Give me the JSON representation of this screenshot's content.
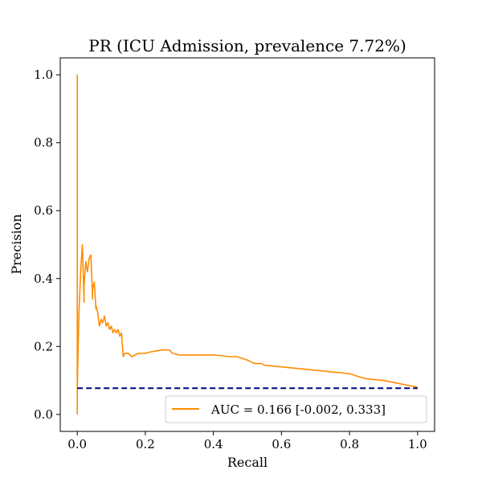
{
  "chart_data": {
    "type": "line",
    "title": "PR (ICU Admission, prevalence 7.72%)",
    "xlabel": "Recall",
    "ylabel": "Precision",
    "xlim": [
      -0.05,
      1.05
    ],
    "ylim": [
      -0.05,
      1.05
    ],
    "xticks": [
      "0.0",
      "0.2",
      "0.4",
      "0.6",
      "0.8",
      "1.0"
    ],
    "yticks": [
      "0.0",
      "0.2",
      "0.4",
      "0.6",
      "0.8",
      "1.0"
    ],
    "grid": false,
    "legend_position": "lower-right",
    "series": [
      {
        "name": "AUC = 0.166 [-0.002, 0.333]",
        "color": "#ff8c00",
        "style": "solid",
        "x": [
          0.0,
          0.0,
          0.0,
          0.005,
          0.01,
          0.015,
          0.02,
          0.02,
          0.025,
          0.03,
          0.035,
          0.04,
          0.045,
          0.045,
          0.05,
          0.055,
          0.055,
          0.06,
          0.065,
          0.07,
          0.075,
          0.08,
          0.085,
          0.09,
          0.095,
          0.1,
          0.105,
          0.11,
          0.115,
          0.12,
          0.125,
          0.13,
          0.135,
          0.14,
          0.15,
          0.16,
          0.18,
          0.2,
          0.22,
          0.25,
          0.27,
          0.28,
          0.3,
          0.35,
          0.4,
          0.45,
          0.47,
          0.5,
          0.52,
          0.54,
          0.55,
          0.6,
          0.65,
          0.7,
          0.75,
          0.8,
          0.83,
          0.85,
          0.9,
          0.95,
          1.0
        ],
        "y": [
          0.0,
          1.0,
          0.08,
          0.3,
          0.42,
          0.5,
          0.33,
          0.38,
          0.45,
          0.42,
          0.46,
          0.47,
          0.34,
          0.37,
          0.39,
          0.31,
          0.32,
          0.3,
          0.26,
          0.28,
          0.27,
          0.29,
          0.26,
          0.27,
          0.25,
          0.26,
          0.24,
          0.25,
          0.24,
          0.25,
          0.23,
          0.24,
          0.17,
          0.18,
          0.18,
          0.17,
          0.18,
          0.18,
          0.185,
          0.19,
          0.19,
          0.18,
          0.175,
          0.175,
          0.175,
          0.17,
          0.17,
          0.16,
          0.15,
          0.15,
          0.145,
          0.14,
          0.135,
          0.13,
          0.125,
          0.12,
          0.11,
          0.105,
          0.1,
          0.09,
          0.08
        ]
      },
      {
        "name": "",
        "color": "#000080",
        "style": "dashed",
        "x": [
          0.0,
          1.0
        ],
        "y": [
          0.077,
          0.077
        ]
      }
    ]
  }
}
